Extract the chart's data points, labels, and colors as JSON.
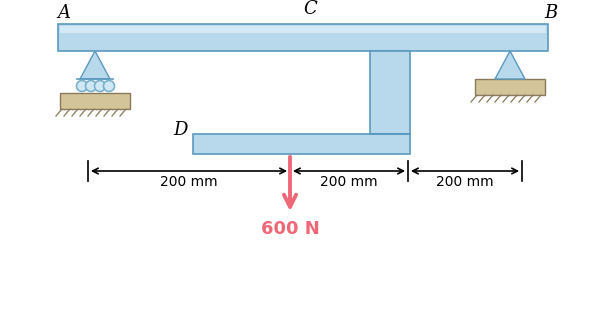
{
  "bg_color": "#ffffff",
  "beam_color": "#b8d8ec",
  "beam_highlight": "#d8edf8",
  "beam_edge": "#5a9abf",
  "ground_color": "#d4c49a",
  "ground_edge": "#8a7a5a",
  "hatch_color": "#8a7a5a",
  "arrow_color": "#f06878",
  "roller_color": "#7ab0cc",
  "label_color": "#000000",
  "force_label": "600 N",
  "label_A": "A",
  "label_B": "B",
  "label_C": "C",
  "label_D": "D",
  "dim1": "200 mm",
  "dim2": "200 mm",
  "dim3": "200 mm",
  "fig_width": 6.0,
  "fig_height": 3.29,
  "dpi": 100
}
